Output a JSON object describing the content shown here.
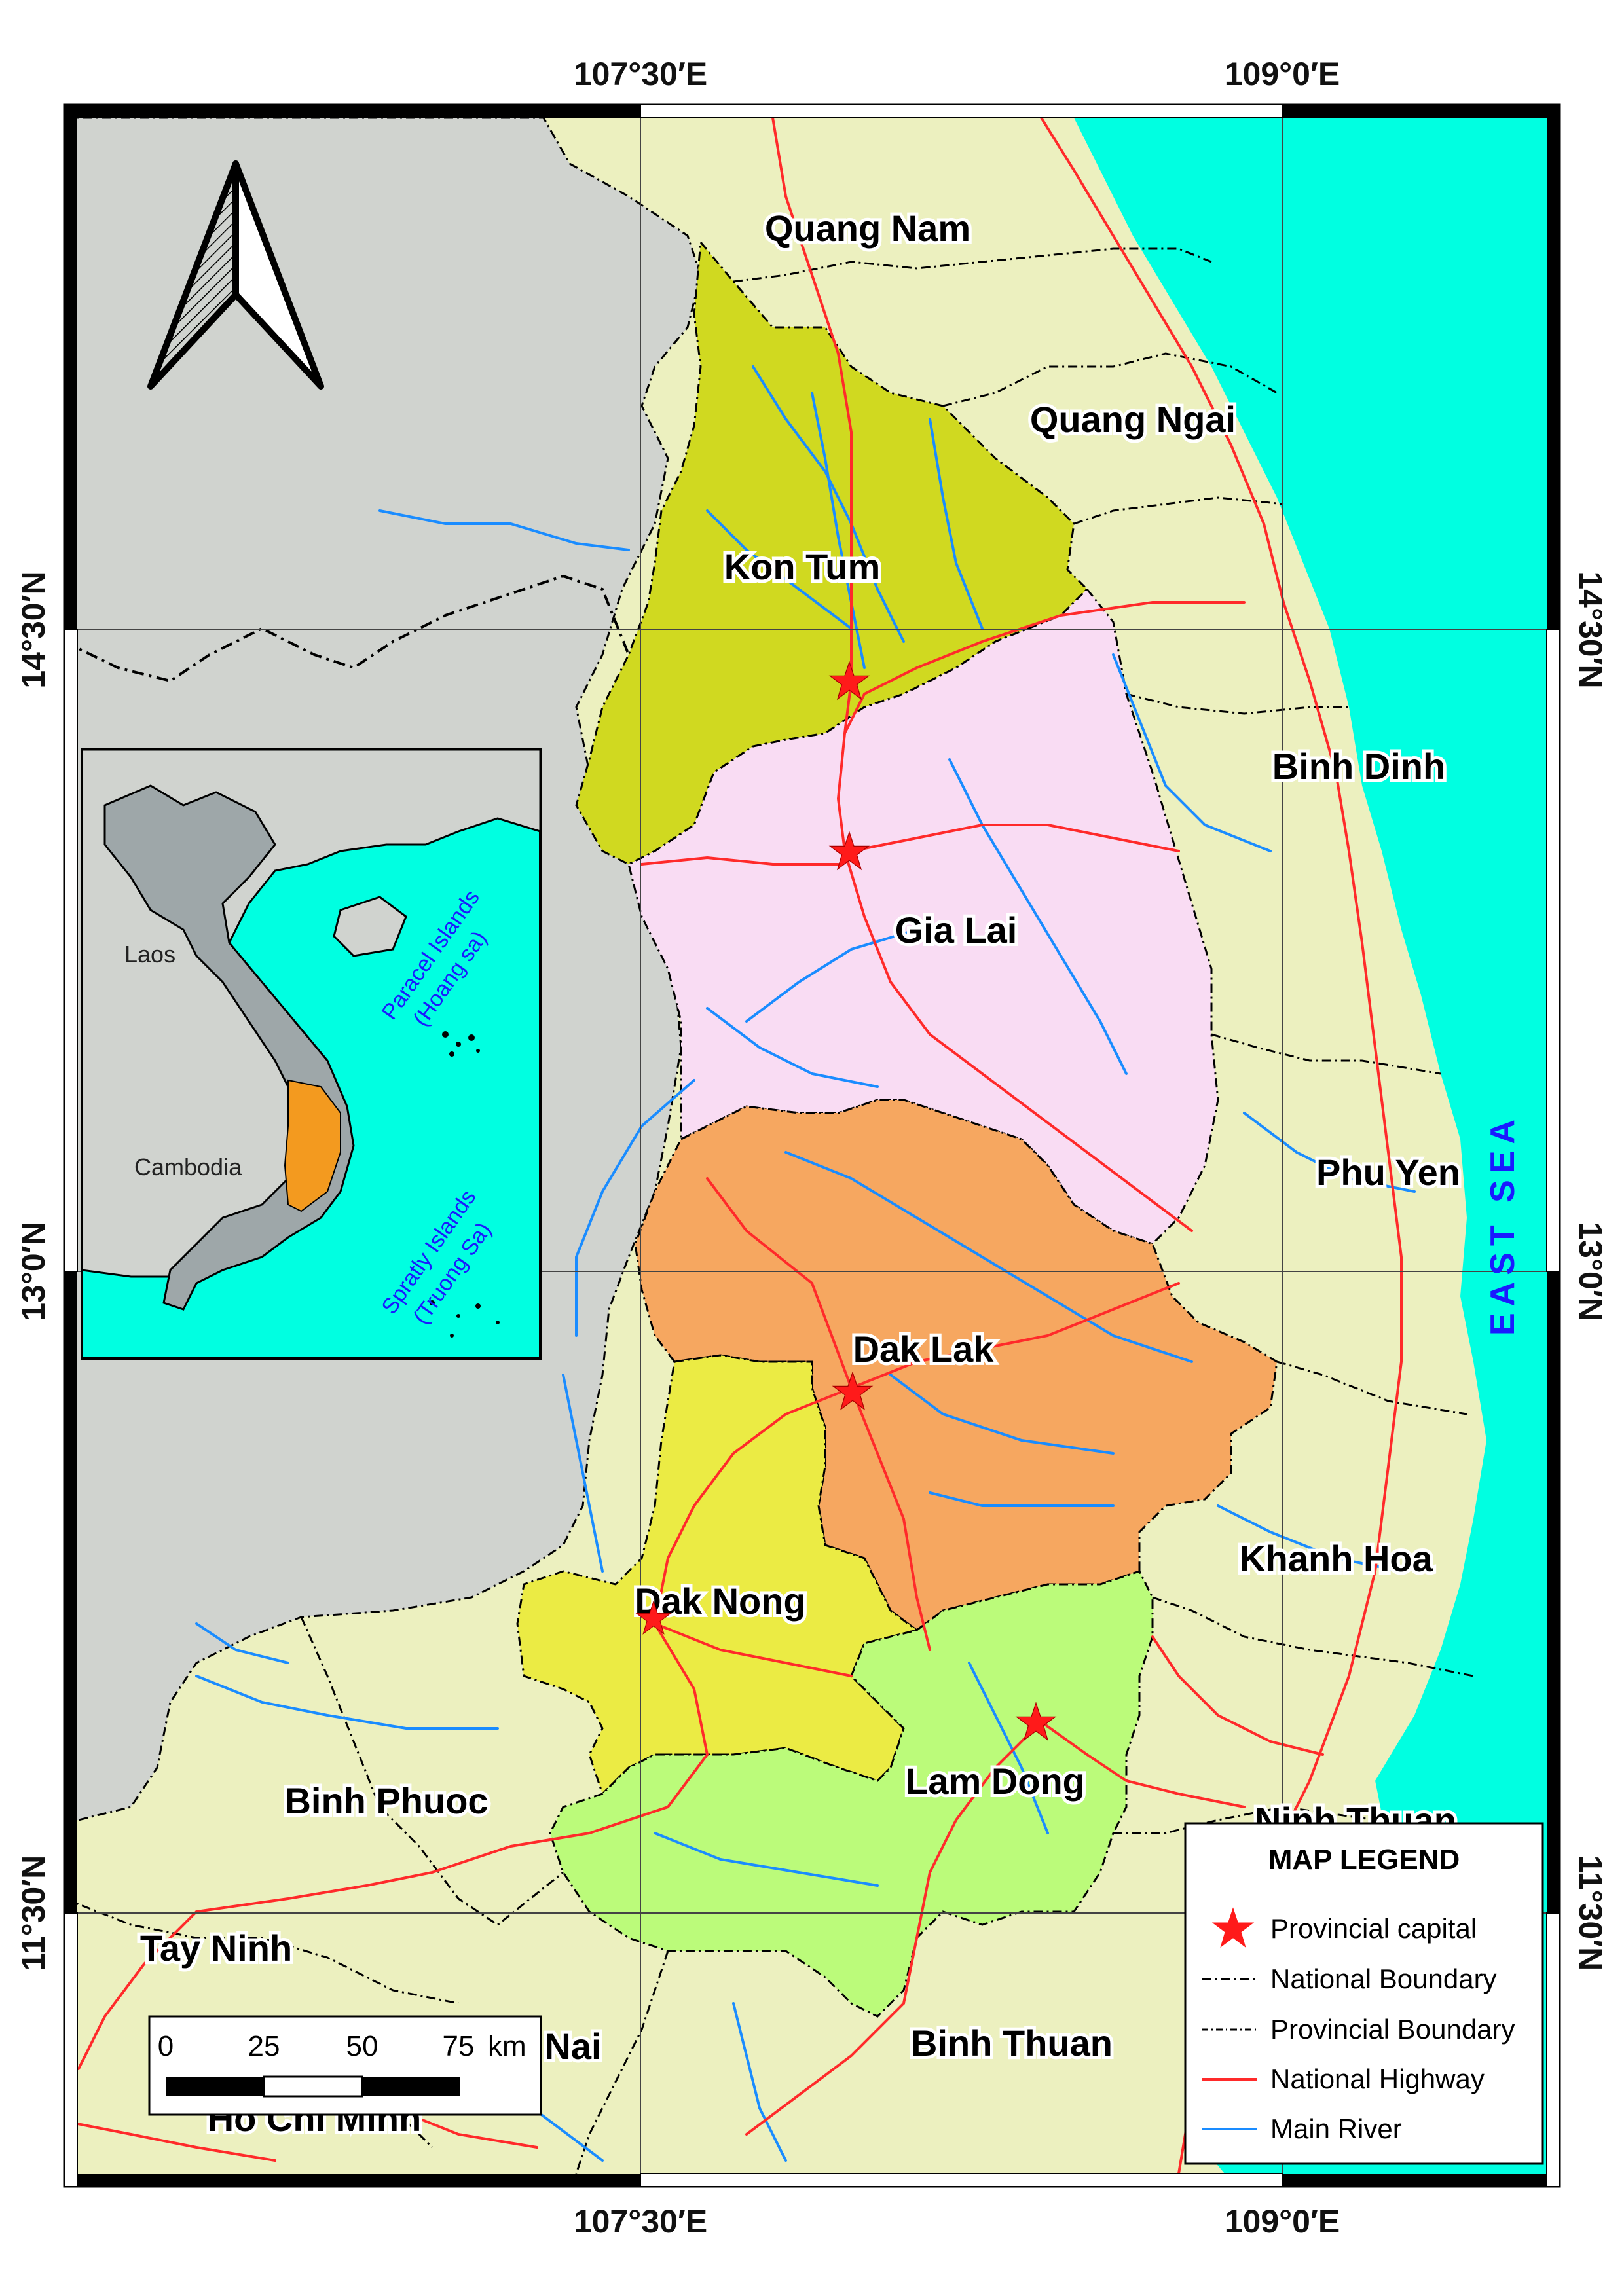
{
  "map": {
    "lon_labels": [
      "107°30′E",
      "109°0′E"
    ],
    "lat_labels": [
      "14°30′N",
      "13°0′N",
      "11°30′N"
    ],
    "sea_label": "EAST SEA",
    "provinces": {
      "quang_nam": "Quang Nam",
      "quang_ngai": "Quang Ngai",
      "kon_tum": "Kon Tum",
      "binh_dinh": "Binh Dinh",
      "gia_lai": "Gia Lai",
      "phu_yen": "Phu Yen",
      "dak_lak": "Dak Lak",
      "khanh_hoa": "Khanh Hoa",
      "dak_nong": "Dak Nong",
      "lam_dong": "Lam Dong",
      "ninh_thuan": "Ninh Thuan",
      "binh_phuoc": "Binh Phuoc",
      "tay_ninh": "Tay Ninh",
      "dong_nai": "Nai",
      "binh_thuan": "Binh Thuan",
      "ho_chi_minh": "Ho Chi Minh"
    },
    "colors": {
      "ocean": "#00ffe1",
      "laos_cambodia": "#d0d3cf",
      "other_provinces": "#ecf0bf",
      "kon_tum": "#d0d920",
      "gia_lai": "#f9dcf3",
      "dak_lak": "#f6a760",
      "dak_nong": "#ebeb44",
      "lam_dong": "#bbfb7a",
      "highway": "#ff2a2a",
      "river": "#1a8cff",
      "capital": "#ff1a1a"
    }
  },
  "inset": {
    "laos": "Laos",
    "cambodia": "Cambodia",
    "paracel_1": "Paracel Islands",
    "paracel_2": "(Hoang sa)",
    "spratly_1": "Spratly Islands",
    "spratly_2": "(Truong Sa)"
  },
  "legend": {
    "title": "MAP LEGEND",
    "items": [
      "Provincial capital",
      "National Boundary",
      "Provincial Boundary",
      "National Highway",
      "Main River"
    ]
  },
  "scale": {
    "ticks": [
      "0",
      "25",
      "50",
      "75"
    ],
    "unit": "km"
  },
  "north_arrow": {
    "icon": "north-arrow-icon"
  }
}
